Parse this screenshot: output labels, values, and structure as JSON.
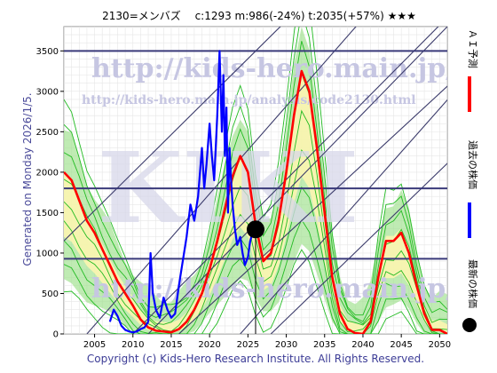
{
  "header": {
    "title": "2130=メンバズ　 c:1293  m:986(-24%)  t:2035(+57%)  ★★★"
  },
  "side_text": {
    "generated": "Generated on Monday 2026/1/5.",
    "copyright": "Copyright (c) Kids-Hero Research Institute. All Rights Reserved."
  },
  "watermarks": {
    "url_top": "http://kids-hero.main.jp/",
    "url_analysis": "http://kids-hero.main.jp/analysis/code2130.html",
    "url_bottom": "http://kids-hero.main.jp/",
    "big": "KIKI"
  },
  "legend": [
    {
      "label": "ＡＩ予測",
      "color": "#ff0000",
      "marker": "line"
    },
    {
      "label": "過去の株価",
      "color": "#0000ff",
      "marker": "line"
    },
    {
      "label": "最新の株価",
      "color": "#000000",
      "marker": "dot"
    }
  ],
  "chart_data": {
    "type": "line",
    "title": "2130=メンバズ　 c:1293  m:986(-24%)  t:2035(+57%)  ★★★",
    "xlim": [
      2001,
      2051
    ],
    "ylim": [
      0,
      3800
    ],
    "x_ticks": [
      2005,
      2010,
      2015,
      2020,
      2025,
      2030,
      2035,
      2040,
      2045,
      2050
    ],
    "y_ticks": [
      0,
      500,
      1000,
      1500,
      2000,
      2500,
      3000,
      3500
    ],
    "grid": true,
    "horizontal_levels": [
      3500,
      1800,
      930
    ],
    "latest_point": {
      "x": 2026.0,
      "y": 1293
    },
    "colors": {
      "ai_forecast": "#ff0000",
      "past_price": "#0000ff",
      "bands": "#22bb22",
      "band_fill": "#9de08a",
      "band_core": "#fff6b0",
      "trend_lines": "#3a3a6a"
    },
    "series": [
      {
        "name": "ＡＩ予測",
        "x": [
          2001,
          2002,
          2003,
          2004,
          2005,
          2006,
          2007,
          2008,
          2009,
          2010,
          2011,
          2012,
          2013,
          2014,
          2015,
          2016,
          2017,
          2018,
          2019,
          2020,
          2021,
          2022,
          2023,
          2024,
          2025,
          2026,
          2027,
          2028,
          2029,
          2030,
          2031,
          2032,
          2033,
          2034,
          2035,
          2036,
          2037,
          2038,
          2039,
          2040,
          2041,
          2042,
          2043,
          2044,
          2045,
          2046,
          2047,
          2048,
          2049,
          2050,
          2051
        ],
        "y": [
          2000,
          1900,
          1650,
          1400,
          1250,
          1050,
          850,
          650,
          500,
          350,
          180,
          80,
          40,
          30,
          20,
          60,
          150,
          300,
          500,
          800,
          1150,
          1550,
          1950,
          2200,
          2000,
          1350,
          900,
          1000,
          1400,
          2000,
          2700,
          3250,
          3000,
          2300,
          1500,
          700,
          250,
          60,
          10,
          0,
          150,
          700,
          1150,
          1150,
          1250,
          1000,
          600,
          250,
          50,
          50,
          0
        ]
      },
      {
        "name": "過去の株価",
        "x": [
          2007.0,
          2007.5,
          2008.0,
          2008.5,
          2009.0,
          2009.5,
          2010.0,
          2010.5,
          2011.0,
          2011.5,
          2012.0,
          2012.3,
          2012.6,
          2013.0,
          2013.5,
          2014.0,
          2014.5,
          2015.0,
          2015.5,
          2016.0,
          2016.5,
          2017.0,
          2017.5,
          2018.0,
          2018.5,
          2019.0,
          2019.3,
          2019.6,
          2020.0,
          2020.3,
          2020.6,
          2021.0,
          2021.3,
          2021.6,
          2021.8,
          2022.0,
          2022.2,
          2022.4,
          2022.6,
          2022.8,
          2023.0,
          2023.3,
          2023.6,
          2024.0,
          2024.3,
          2024.6,
          2025.0,
          2025.3,
          2025.6,
          2026.0
        ],
        "y": [
          150,
          300,
          220,
          100,
          50,
          30,
          20,
          30,
          60,
          80,
          150,
          1000,
          500,
          300,
          200,
          450,
          300,
          200,
          250,
          600,
          900,
          1200,
          1600,
          1400,
          1700,
          2300,
          1800,
          2100,
          2600,
          2200,
          1900,
          2700,
          3500,
          2500,
          3200,
          2200,
          2800,
          1500,
          2300,
          1900,
          1600,
          1300,
          1100,
          1200,
          1000,
          850,
          950,
          1150,
          1250,
          1293
        ]
      }
    ]
  }
}
